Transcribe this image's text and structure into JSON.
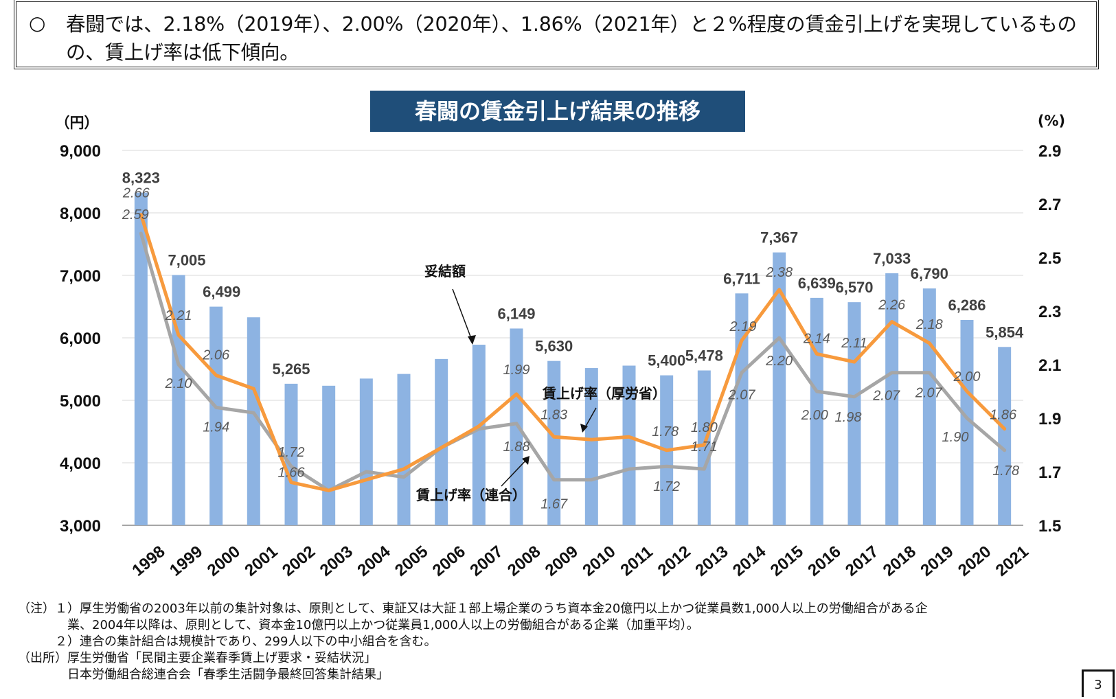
{
  "summary": {
    "bullet": "○",
    "text": "春闘では、2.18%（2019年）、2.00%（2020年）、1.86%（2021年）と２%程度の賃金引上げを実現しているものの、賃上げ率は低下傾向。"
  },
  "chart_data": {
    "type": "bar",
    "title": "春闘の賃金引上げ結果の推移",
    "categories": [
      "1998",
      "1999",
      "2000",
      "2001",
      "2002",
      "2003",
      "2004",
      "2005",
      "2006",
      "2007",
      "2008",
      "2009",
      "2010",
      "2011",
      "2012",
      "2013",
      "2014",
      "2015",
      "2016",
      "2017",
      "2018",
      "2019",
      "2020",
      "2021"
    ],
    "y_left": {
      "unit": "（円）",
      "range": [
        3000,
        9000
      ],
      "ticks": [
        "3,000",
        "4,000",
        "5,000",
        "6,000",
        "7,000",
        "8,000",
        "9,000"
      ]
    },
    "y_right": {
      "unit": "(%)",
      "range": [
        1.5,
        2.9
      ],
      "ticks": [
        "1.5",
        "1.7",
        "1.9",
        "2.1",
        "2.3",
        "2.5",
        "2.7",
        "2.9"
      ]
    },
    "grid": true,
    "series": [
      {
        "name": "妥結額",
        "type": "bar",
        "axis": "left",
        "color": "#8db3e2",
        "values": [
          8323,
          7005,
          6499,
          6328,
          5265,
          5233,
          5348,
          5422,
          5661,
          5890,
          6149,
          5630,
          5516,
          5555,
          5400,
          5478,
          6711,
          7367,
          6639,
          6570,
          7033,
          6790,
          6286,
          5854
        ],
        "labels": [
          "8,323",
          "7,005",
          "6,499",
          "",
          "5,265",
          "",
          "",
          "",
          "",
          "",
          "6,149",
          "5,630",
          "",
          "",
          "5,400",
          "5,478",
          "6,711",
          "7,367",
          "6,639",
          "6,570",
          "7,033",
          "6,790",
          "6,286",
          "5,854"
        ]
      },
      {
        "name": "賃上げ率（厚労省）",
        "type": "line",
        "axis": "right",
        "color": "#f79a3d",
        "values": [
          2.66,
          2.21,
          2.06,
          2.01,
          1.66,
          1.63,
          1.67,
          1.71,
          1.79,
          1.87,
          1.99,
          1.83,
          1.82,
          1.83,
          1.78,
          1.8,
          2.19,
          2.38,
          2.14,
          2.11,
          2.26,
          2.18,
          2.0,
          1.86
        ],
        "labels": [
          "2.66",
          "2.21",
          "2.06",
          "",
          "1.66",
          "",
          "",
          "",
          "",
          "",
          "1.99",
          "1.83",
          "",
          "",
          "1.78",
          "1.80",
          "2.19",
          "2.38",
          "2.14",
          "2.11",
          "2.26",
          "2.18",
          "2.00",
          "1.86"
        ]
      },
      {
        "name": "賃上げ率（連合）",
        "type": "line",
        "axis": "right",
        "color": "#a6a6a6",
        "values": [
          2.59,
          2.1,
          1.94,
          1.92,
          1.72,
          1.63,
          1.7,
          1.68,
          1.79,
          1.86,
          1.88,
          1.67,
          1.67,
          1.71,
          1.72,
          1.71,
          2.07,
          2.2,
          2.0,
          1.98,
          2.07,
          2.07,
          1.9,
          1.78
        ],
        "labels": [
          "2.59",
          "2.10",
          "1.94",
          "",
          "1.72",
          "",
          "",
          "",
          "",
          "",
          "1.88",
          "1.67",
          "",
          "",
          "1.72",
          "1.71",
          "2.07",
          "2.20",
          "2.00",
          "1.98",
          "2.07",
          "2.07",
          "1.90",
          "1.78"
        ]
      }
    ],
    "annotations": {
      "bar": "妥結額",
      "mhlw": "賃上げ率（厚労省）",
      "rengo": "賃上げ率（連合）"
    }
  },
  "notes": [
    "（注）１）厚生労働省の2003年以前の集計対象は、原則として、東証又は大証１部上場企業のうち資本金20億円以上かつ従業員数1,000人以上の労働組合がある企",
    "　　　　業、2004年以降は、原則として、資本金10億円以上かつ従業員1,000人以上の労働組合がある企業（加重平均）。",
    "　　　２）連合の集計組合は規模計であり、299人以下の中小組合を含む。",
    "（出所）厚生労働省「民間主要企業春季賃上げ要求・妥結状況」",
    "　　　　日本労働組合総連合会「春季生活闘争最終回答集計結果」"
  ],
  "page_number": "3"
}
